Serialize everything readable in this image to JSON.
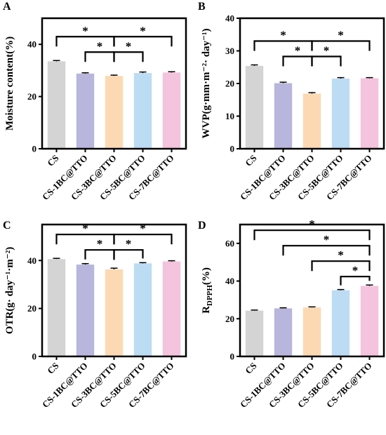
{
  "colors": {
    "CS": "#d4d4d4",
    "CS-1BC@TTO": "#b8b6dc",
    "CS-3BC@TTO": "#fdd9b3",
    "CS-5BC@TTO": "#bcdcf3",
    "CS-7BC@TTO": "#f4c3dd"
  },
  "chart_data": [
    {
      "panel": "A",
      "type": "bar",
      "ylabel": "Moisture content(%)",
      "ylim": [
        0,
        50
      ],
      "yticks": [
        0,
        20,
        40
      ],
      "categories": [
        "CS",
        "CS-1BC@TTO",
        "CS-3BC@TTO",
        "CS-5BC@TTO",
        "CS-7BC@TTO"
      ],
      "values": [
        33.5,
        28.8,
        27.9,
        29.0,
        29.2
      ],
      "errors": [
        0.3,
        0.3,
        0.3,
        0.4,
        0.3
      ],
      "significance": [
        {
          "from": 0,
          "to": 2,
          "label": "*"
        },
        {
          "from": 1,
          "to": 2,
          "label": "*"
        },
        {
          "from": 2,
          "to": 3,
          "label": "*"
        },
        {
          "from": 2,
          "to": 4,
          "label": "*"
        }
      ]
    },
    {
      "panel": "B",
      "type": "bar",
      "ylabel": "WVP(g·mm·m⁻²· day⁻¹)",
      "ylim": [
        0,
        40
      ],
      "yticks": [
        0,
        10,
        20,
        30,
        40
      ],
      "categories": [
        "CS",
        "CS-1BC@TTO",
        "CS-3BC@TTO",
        "CS-5BC@TTO",
        "CS-7BC@TTO"
      ],
      "values": [
        25.4,
        20.1,
        16.9,
        21.5,
        21.6
      ],
      "errors": [
        0.3,
        0.3,
        0.3,
        0.3,
        0.2
      ],
      "significance": [
        {
          "from": 0,
          "to": 2,
          "label": "*"
        },
        {
          "from": 1,
          "to": 2,
          "label": "*"
        },
        {
          "from": 2,
          "to": 3,
          "label": "*"
        },
        {
          "from": 2,
          "to": 4,
          "label": "*"
        }
      ]
    },
    {
      "panel": "C",
      "type": "bar",
      "ylabel": "OTR(g· day⁻¹·m⁻²)",
      "ylim": [
        0,
        55
      ],
      "yticks": [
        0,
        20,
        40
      ],
      "categories": [
        "CS",
        "CS-1BC@TTO",
        "CS-3BC@TTO",
        "CS-5BC@TTO",
        "CS-7BC@TTO"
      ],
      "values": [
        40.6,
        38.3,
        36.3,
        38.8,
        39.6
      ],
      "errors": [
        0.3,
        0.4,
        0.5,
        0.3,
        0.3
      ],
      "significance": [
        {
          "from": 0,
          "to": 2,
          "label": "*"
        },
        {
          "from": 1,
          "to": 2,
          "label": "*"
        },
        {
          "from": 2,
          "to": 3,
          "label": "*"
        },
        {
          "from": 2,
          "to": 4,
          "label": "*"
        }
      ]
    },
    {
      "panel": "D",
      "type": "bar",
      "ylabel": "RDPPH(%)",
      "ylabel_main": "R",
      "ylabel_sub": "DPPH",
      "ylabel_tail": "(%)",
      "ylim": [
        0,
        70
      ],
      "yticks": [
        0,
        20,
        40,
        60
      ],
      "categories": [
        "CS",
        "CS-1BC@TTO",
        "CS-3BC@TTO",
        "CS-5BC@TTO",
        "CS-7BC@TTO"
      ],
      "values": [
        24.3,
        25.5,
        26.0,
        35.1,
        37.4
      ],
      "errors": [
        0.3,
        0.3,
        0.3,
        0.4,
        0.5
      ],
      "significance": [
        {
          "from": 0,
          "to": 4,
          "label": "*"
        },
        {
          "from": 1,
          "to": 4,
          "label": "*"
        },
        {
          "from": 2,
          "to": 4,
          "label": "*"
        },
        {
          "from": 3,
          "to": 4,
          "label": "*"
        }
      ]
    }
  ]
}
